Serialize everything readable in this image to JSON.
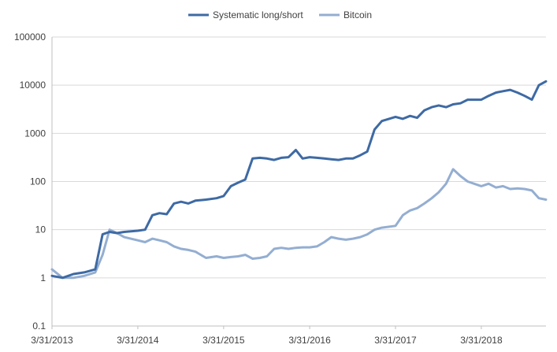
{
  "chart_data": {
    "type": "line",
    "title": "",
    "xlabel": "",
    "ylabel": "",
    "y_scale": "log",
    "ylim": [
      0.1,
      100000
    ],
    "y_ticks": [
      "0.1",
      "1",
      "10",
      "100",
      "1000",
      "10000",
      "100000"
    ],
    "x_range": [
      "2013-03-31",
      "2018-12-31"
    ],
    "x_ticks": [
      "3/31/2013",
      "3/31/2014",
      "3/31/2015",
      "3/31/2016",
      "3/31/2017",
      "3/31/2018"
    ],
    "grid": "horizontal",
    "legend_position": "top",
    "series": [
      {
        "name": "Systematic long/short",
        "color": "#3e6aa4",
        "x": [
          "2013-03-31",
          "2013-05-15",
          "2013-06-30",
          "2013-08-15",
          "2013-10-01",
          "2013-11-01",
          "2013-12-01",
          "2014-01-01",
          "2014-02-01",
          "2014-03-31",
          "2014-05-01",
          "2014-06-01",
          "2014-07-01",
          "2014-08-01",
          "2014-09-01",
          "2014-10-01",
          "2014-11-01",
          "2014-12-01",
          "2015-01-15",
          "2015-03-01",
          "2015-03-31",
          "2015-05-01",
          "2015-06-01",
          "2015-07-01",
          "2015-08-01",
          "2015-09-01",
          "2015-10-01",
          "2015-11-01",
          "2015-12-01",
          "2016-01-01",
          "2016-02-01",
          "2016-03-01",
          "2016-03-31",
          "2016-05-01",
          "2016-06-01",
          "2016-07-01",
          "2016-08-01",
          "2016-09-01",
          "2016-10-01",
          "2016-11-01",
          "2016-12-01",
          "2017-01-01",
          "2017-02-01",
          "2017-03-31",
          "2017-05-01",
          "2017-06-01",
          "2017-07-01",
          "2017-08-01",
          "2017-09-01",
          "2017-10-01",
          "2017-11-01",
          "2017-12-01",
          "2018-01-01",
          "2018-02-01",
          "2018-03-31",
          "2018-05-01",
          "2018-06-01",
          "2018-07-01",
          "2018-08-01",
          "2018-09-01",
          "2018-10-01",
          "2018-11-01",
          "2018-12-01",
          "2018-12-31"
        ],
        "y": [
          1.1,
          1.0,
          1.2,
          1.3,
          1.5,
          8.0,
          9.0,
          8.5,
          9.0,
          9.5,
          10,
          20,
          22,
          21,
          35,
          38,
          35,
          40,
          42,
          45,
          50,
          80,
          95,
          110,
          300,
          310,
          300,
          280,
          310,
          320,
          450,
          300,
          320,
          310,
          300,
          290,
          280,
          300,
          300,
          350,
          420,
          1200,
          1800,
          2200,
          2000,
          2300,
          2100,
          3000,
          3500,
          3800,
          3500,
          4000,
          4200,
          5000,
          5000,
          6000,
          7000,
          7500,
          8000,
          7000,
          6000,
          5000,
          10000,
          12000
        ]
      },
      {
        "name": "Bitcoin",
        "color": "#94aed1",
        "x": [
          "2013-03-31",
          "2013-05-15",
          "2013-06-30",
          "2013-08-15",
          "2013-10-01",
          "2013-11-01",
          "2013-12-01",
          "2014-01-01",
          "2014-02-01",
          "2014-03-31",
          "2014-05-01",
          "2014-06-01",
          "2014-07-01",
          "2014-08-01",
          "2014-09-01",
          "2014-10-01",
          "2014-11-01",
          "2014-12-01",
          "2015-01-15",
          "2015-03-01",
          "2015-03-31",
          "2015-05-01",
          "2015-06-01",
          "2015-07-01",
          "2015-08-01",
          "2015-09-01",
          "2015-10-01",
          "2015-11-01",
          "2015-12-01",
          "2016-01-01",
          "2016-02-01",
          "2016-03-01",
          "2016-03-31",
          "2016-05-01",
          "2016-06-01",
          "2016-07-01",
          "2016-08-01",
          "2016-09-01",
          "2016-10-01",
          "2016-11-01",
          "2016-12-01",
          "2017-01-01",
          "2017-02-01",
          "2017-03-31",
          "2017-05-01",
          "2017-06-01",
          "2017-07-01",
          "2017-08-01",
          "2017-09-01",
          "2017-10-01",
          "2017-11-01",
          "2017-12-01",
          "2018-01-01",
          "2018-02-01",
          "2018-03-31",
          "2018-05-01",
          "2018-06-01",
          "2018-07-01",
          "2018-08-01",
          "2018-09-01",
          "2018-10-01",
          "2018-11-01",
          "2018-12-01",
          "2018-12-31"
        ],
        "y": [
          1.5,
          1.0,
          1.0,
          1.1,
          1.3,
          3.0,
          10,
          8.5,
          7.0,
          6.0,
          5.5,
          6.5,
          6.0,
          5.5,
          4.5,
          4.0,
          3.8,
          3.5,
          2.6,
          2.8,
          2.6,
          2.7,
          2.8,
          3.0,
          2.5,
          2.6,
          2.8,
          4.0,
          4.2,
          4.0,
          4.2,
          4.3,
          4.3,
          4.5,
          5.5,
          7.0,
          6.5,
          6.2,
          6.5,
          7.0,
          8.0,
          10,
          11,
          12,
          20,
          25,
          28,
          35,
          45,
          60,
          90,
          180,
          130,
          100,
          80,
          90,
          75,
          80,
          70,
          72,
          70,
          65,
          45,
          42
        ]
      }
    ]
  }
}
